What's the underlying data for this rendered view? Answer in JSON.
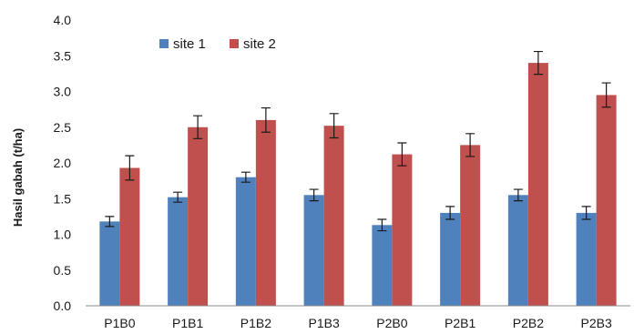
{
  "chart_data": {
    "type": "bar",
    "title": "",
    "xlabel": "",
    "ylabel": "Hasil gabah (t/ha)",
    "ylim": [
      0,
      4.0
    ],
    "yticks": [
      "0.0",
      "0.5",
      "1.0",
      "1.5",
      "2.0",
      "2.5",
      "3.0",
      "3.5",
      "4.0"
    ],
    "grid": false,
    "legend_position": "top-left",
    "categories": [
      "P1B0",
      "P1B1",
      "P1B2",
      "P1B3",
      "P2B0",
      "P2B1",
      "P2B2",
      "P2B3"
    ],
    "series": [
      {
        "name": "site 1",
        "color": "#4f81bd",
        "values": [
          1.18,
          1.52,
          1.8,
          1.55,
          1.13,
          1.3,
          1.55,
          1.3
        ],
        "errors": [
          0.07,
          0.07,
          0.07,
          0.08,
          0.08,
          0.09,
          0.08,
          0.09
        ]
      },
      {
        "name": "site 2",
        "color": "#c0504d",
        "values": [
          1.93,
          2.5,
          2.6,
          2.52,
          2.12,
          2.25,
          3.4,
          2.95
        ],
        "errors": [
          0.17,
          0.16,
          0.17,
          0.17,
          0.16,
          0.16,
          0.16,
          0.17
        ]
      }
    ]
  }
}
